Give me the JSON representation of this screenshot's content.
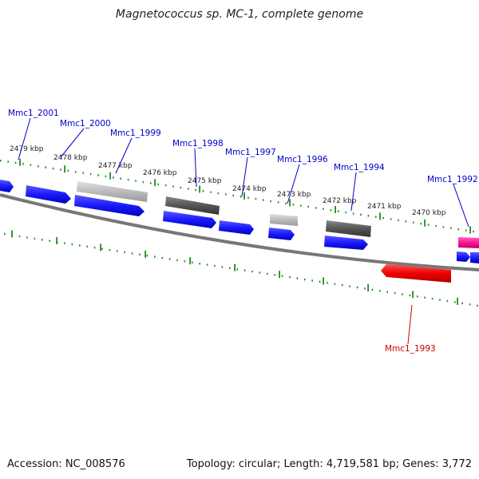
{
  "title": "Magnetococcus sp. MC-1, complete genome",
  "footer": {
    "accession": "Accession: NC_008576",
    "summary": "Topology: circular; Length: 4,719,581 bp; Genes: 3,772"
  },
  "colors": {
    "forward_cds": "#1a1aff",
    "reverse_cds": "#ee0000",
    "trna_like": "#ff1493",
    "dark_gray_feature": "#555555",
    "light_gray_feature": "#bbbbbb",
    "backbone": "#777777",
    "ticks": "#228b22",
    "forward_label": "#0000cc",
    "reverse_label": "#cc0000"
  },
  "kbp_labels": [
    {
      "text": "2479 kbp"
    },
    {
      "text": "2478 kbp"
    },
    {
      "text": "2477 kbp"
    },
    {
      "text": "2476 kbp"
    },
    {
      "text": "2475 kbp"
    },
    {
      "text": "2474 kbp"
    },
    {
      "text": "2473 kbp"
    },
    {
      "text": "2472 kbp"
    },
    {
      "text": "2471 kbp"
    },
    {
      "text": "2470 kbp"
    }
  ],
  "gene_labels": [
    {
      "text": "Mmc1_2001",
      "strand": "forward"
    },
    {
      "text": "Mmc1_2000",
      "strand": "forward"
    },
    {
      "text": "Mmc1_1999",
      "strand": "forward"
    },
    {
      "text": "Mmc1_1998",
      "strand": "forward"
    },
    {
      "text": "Mmc1_1997",
      "strand": "forward"
    },
    {
      "text": "Mmc1_1996",
      "strand": "forward"
    },
    {
      "text": "Mmc1_1994",
      "strand": "forward"
    },
    {
      "text": "Mmc1_1992",
      "strand": "forward"
    },
    {
      "text": "Mmc1_1993",
      "strand": "reverse"
    }
  ]
}
